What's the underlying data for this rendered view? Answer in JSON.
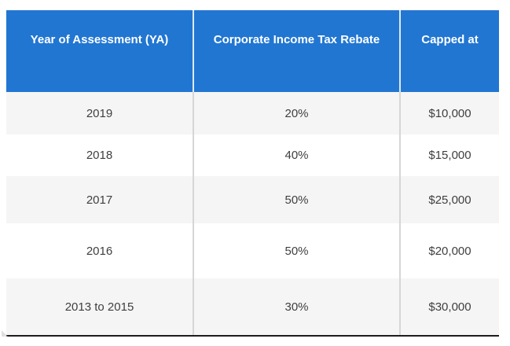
{
  "chart_data": {
    "type": "table",
    "title": "",
    "columns": [
      "Year of Assessment (YA)",
      "Corporate Income Tax Rebate",
      "Capped at"
    ],
    "rows": [
      [
        "2019",
        "20%",
        "$10,000"
      ],
      [
        "2018",
        "40%",
        "$15,000"
      ],
      [
        "2017",
        "50%",
        "$25,000"
      ],
      [
        "2016",
        "50%",
        "$20,000"
      ],
      [
        "2013 to 2015",
        "30%",
        "$30,000"
      ]
    ],
    "layout": {
      "header_position": "top",
      "zebra_striping": true,
      "grid": "column-dividers-and-bottom-border"
    }
  },
  "colors": {
    "header_bg": "#2176d2",
    "header_text": "#ffffff",
    "row_alt_bg": "#f5f5f5",
    "row_bg": "#ffffff",
    "body_text": "#3f3f3f",
    "column_divider": "#d6d6d6",
    "header_divider": "#dde9f6",
    "bottom_border": "#1c1c1c"
  }
}
